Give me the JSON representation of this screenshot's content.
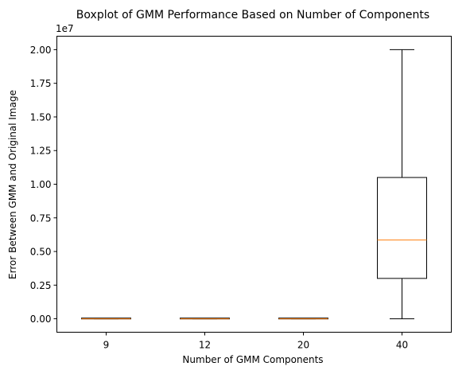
{
  "chart_data": {
    "type": "boxplot",
    "title": "Boxplot of GMM Performance Based on Number of Components",
    "xlabel": "Number of GMM Components",
    "ylabel": "Error Between GMM and Original Image",
    "y_offset_label": "1e7",
    "categories": [
      "9",
      "12",
      "20",
      "40"
    ],
    "y_ticks": [
      "0.00",
      "0.25",
      "0.50",
      "0.75",
      "1.00",
      "1.25",
      "1.50",
      "1.75",
      "2.00"
    ],
    "y_tick_values": [
      0,
      0.25,
      0.5,
      0.75,
      1.0,
      1.25,
      1.5,
      1.75,
      2.0
    ],
    "ylim": [
      -0.1,
      2.1
    ],
    "y_scale_factor": 10000000,
    "boxes": [
      {
        "category": "9",
        "whisker_low": 0,
        "q1": 0,
        "median": 0,
        "q3": 0.002,
        "whisker_high": 0.002
      },
      {
        "category": "12",
        "whisker_low": 0,
        "q1": 0,
        "median": 0,
        "q3": 0.002,
        "whisker_high": 0.002
      },
      {
        "category": "20",
        "whisker_low": 0,
        "q1": 0,
        "median": 0,
        "q3": 0.002,
        "whisker_high": 0.002
      },
      {
        "category": "40",
        "whisker_low": 0.0,
        "q1": 0.3,
        "median": 0.585,
        "q3": 1.05,
        "whisker_high": 2.0
      }
    ],
    "grid": false,
    "colors": {
      "box": "#000000",
      "median": "#ff7f0e",
      "axes": "#000000"
    }
  }
}
